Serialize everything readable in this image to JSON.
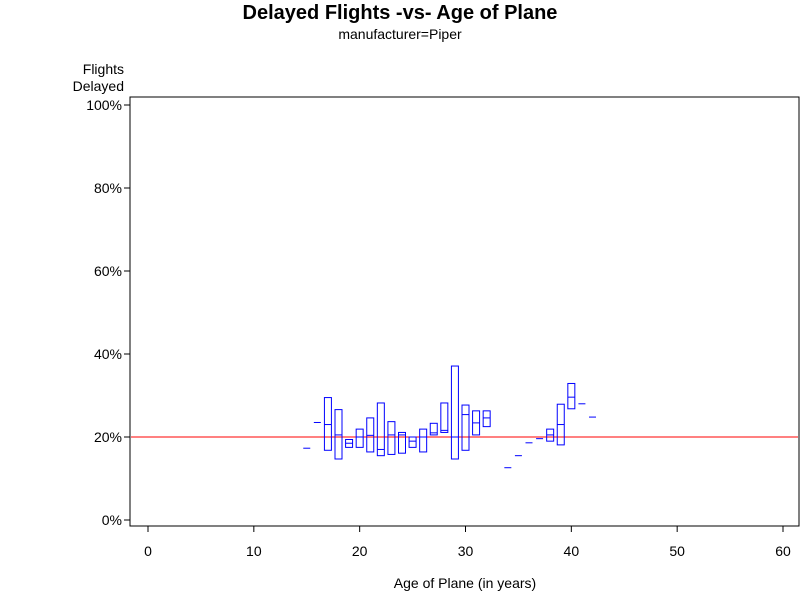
{
  "chart_data": {
    "type": "box",
    "title": "Delayed Flights -vs- Age of Plane",
    "subtitle": "manufacturer=Piper",
    "xlabel": "Age of Plane (in years)",
    "ylabel": "Flights\nDelayed",
    "xlim": [
      0,
      60
    ],
    "ylim": [
      0,
      100
    ],
    "x_ticks": [
      0,
      10,
      20,
      30,
      40,
      50,
      60
    ],
    "y_ticks": [
      0,
      20,
      40,
      60,
      80,
      100
    ],
    "y_tick_labels": [
      "0%",
      "20%",
      "40%",
      "60%",
      "80%",
      "100%"
    ],
    "reference_line": {
      "y": 20,
      "color": "#ff0000"
    },
    "box_color": "#0000ff",
    "boxes": [
      {
        "x": 15,
        "low": 17.3,
        "high": 17.3,
        "mid": 17.3
      },
      {
        "x": 16,
        "low": 23.5,
        "high": 23.5,
        "mid": 23.5
      },
      {
        "x": 17,
        "low": 16.8,
        "high": 29.5,
        "mid": 23.0
      },
      {
        "x": 18,
        "low": 14.7,
        "high": 26.6,
        "mid": 20.5
      },
      {
        "x": 19,
        "low": 17.5,
        "high": 19.4,
        "mid": 18.5
      },
      {
        "x": 20,
        "low": 17.5,
        "high": 21.9,
        "mid": 20.0
      },
      {
        "x": 21,
        "low": 16.4,
        "high": 24.6,
        "mid": 20.4
      },
      {
        "x": 22,
        "low": 15.5,
        "high": 28.2,
        "mid": 17.0
      },
      {
        "x": 23,
        "low": 15.8,
        "high": 23.7,
        "mid": 20.5
      },
      {
        "x": 24,
        "low": 16.1,
        "high": 21.1,
        "mid": 20.5
      },
      {
        "x": 25,
        "low": 17.5,
        "high": 20.0,
        "mid": 19.0
      },
      {
        "x": 26,
        "low": 16.4,
        "high": 21.9,
        "mid": 20.0
      },
      {
        "x": 27,
        "low": 20.5,
        "high": 23.3,
        "mid": 21.0
      },
      {
        "x": 28,
        "low": 21.1,
        "high": 28.2,
        "mid": 21.6
      },
      {
        "x": 29,
        "low": 14.7,
        "high": 37.1,
        "mid": 20.0
      },
      {
        "x": 30,
        "low": 16.8,
        "high": 27.7,
        "mid": 25.4
      },
      {
        "x": 31,
        "low": 20.5,
        "high": 26.3,
        "mid": 23.4
      },
      {
        "x": 32,
        "low": 22.5,
        "high": 26.3,
        "mid": 24.6
      },
      {
        "x": 34,
        "low": 12.6,
        "high": 12.6,
        "mid": 12.6
      },
      {
        "x": 35,
        "low": 15.5,
        "high": 15.5,
        "mid": 15.5
      },
      {
        "x": 36,
        "low": 18.6,
        "high": 18.6,
        "mid": 18.6
      },
      {
        "x": 37,
        "low": 19.6,
        "high": 19.6,
        "mid": 19.6
      },
      {
        "x": 38,
        "low": 19.0,
        "high": 21.9,
        "mid": 20.5
      },
      {
        "x": 39,
        "low": 18.1,
        "high": 27.9,
        "mid": 23.0
      },
      {
        "x": 40,
        "low": 26.8,
        "high": 32.9,
        "mid": 29.6
      },
      {
        "x": 41,
        "low": 28.0,
        "high": 28.0,
        "mid": 28.0
      },
      {
        "x": 42,
        "low": 24.8,
        "high": 24.8,
        "mid": 24.8
      }
    ]
  }
}
